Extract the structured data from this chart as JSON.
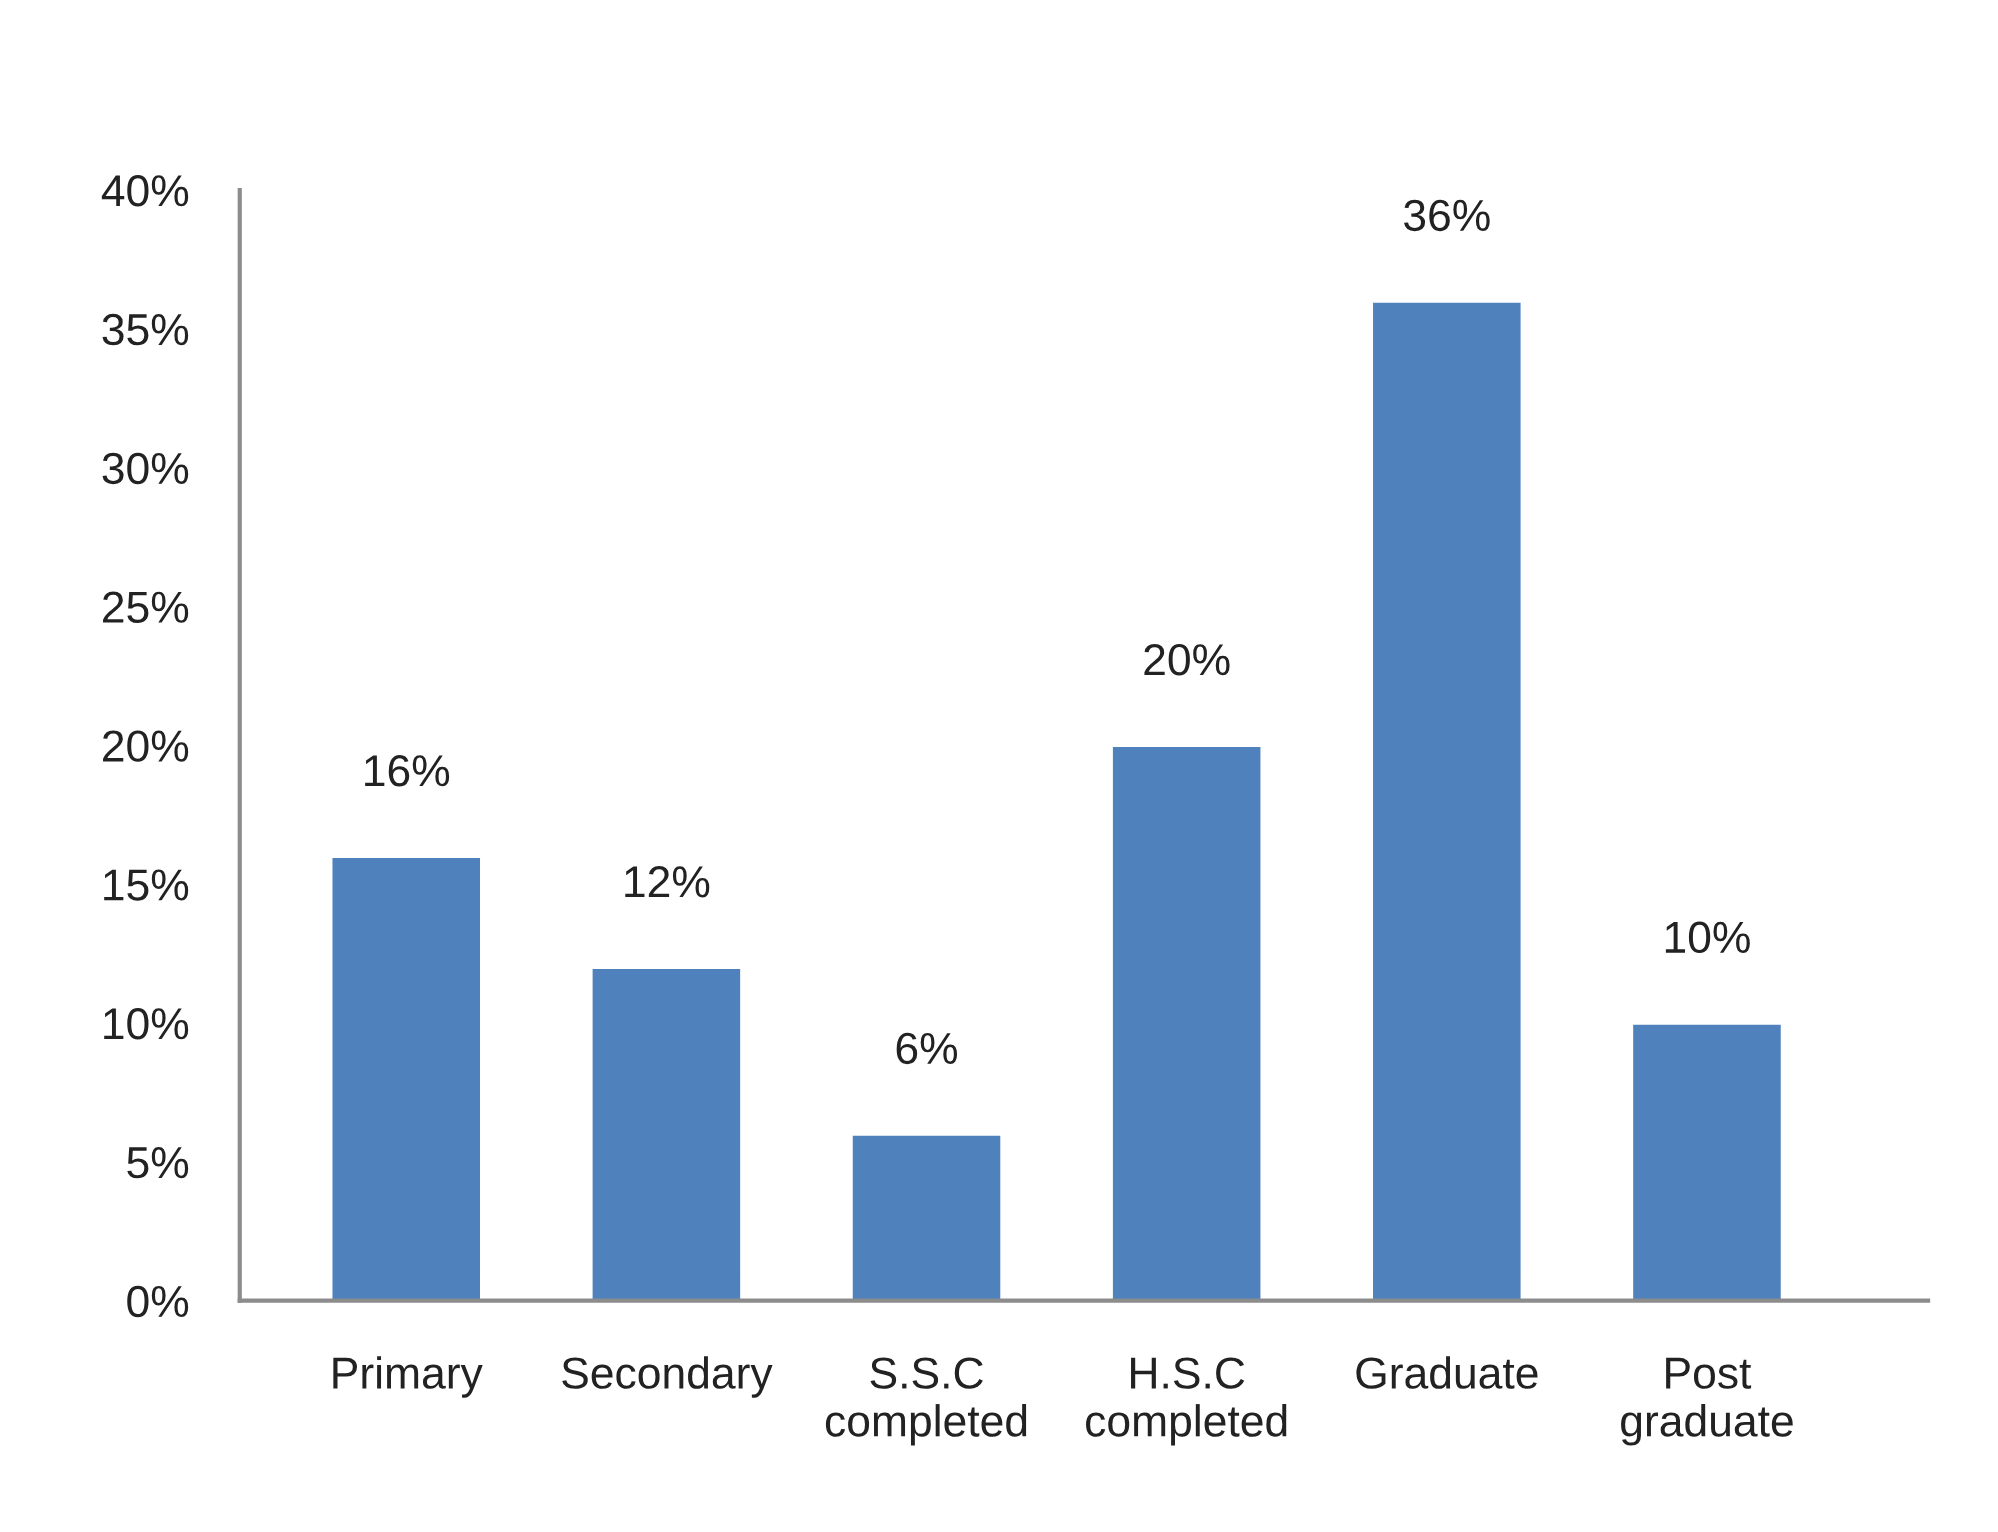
{
  "chart_data": {
    "type": "bar",
    "categories": [
      "Primary",
      "Secondary",
      "S.S.C\ncompleted",
      "H.S.C\ncompleted",
      "Graduate",
      "Post\ngraduate"
    ],
    "values": [
      16,
      12,
      6,
      20,
      36,
      10
    ],
    "color": "#4f81bd",
    "value_labels": [
      "16%",
      "12%",
      "6%",
      "20%",
      "36%",
      "10%"
    ],
    "ylim": [
      0,
      40
    ],
    "yticks": [
      {
        "value": 0,
        "label": "0%"
      },
      {
        "value": 5,
        "label": "5%"
      },
      {
        "value": 10,
        "label": "10%"
      },
      {
        "value": 15,
        "label": "15%"
      },
      {
        "value": 20,
        "label": "20%"
      },
      {
        "value": 25,
        "label": "25%"
      },
      {
        "value": 30,
        "label": "30%"
      },
      {
        "value": 35,
        "label": "35%"
      },
      {
        "value": 40,
        "label": "40%"
      }
    ],
    "grid": false,
    "legend": false
  }
}
